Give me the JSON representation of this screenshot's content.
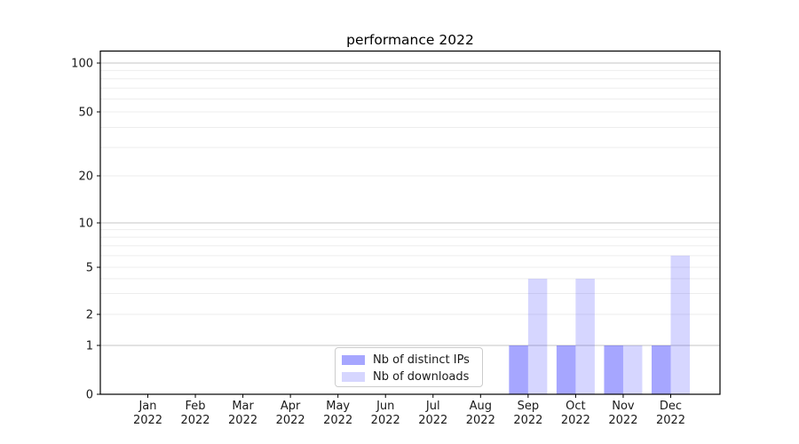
{
  "chart_data": {
    "type": "bar",
    "title": "performance 2022",
    "categories": [
      "Jan",
      "Feb",
      "Mar",
      "Apr",
      "May",
      "Jun",
      "Jul",
      "Aug",
      "Sep",
      "Oct",
      "Nov",
      "Dec"
    ],
    "category_year": "2022",
    "series": [
      {
        "name": "Nb of distinct IPs",
        "color": "rgba(0,0,255,0.35)",
        "values": [
          0,
          0,
          0,
          0,
          0,
          0,
          0,
          0,
          1,
          1,
          1,
          1
        ]
      },
      {
        "name": "Nb of downloads",
        "color": "rgba(0,0,255,0.16)",
        "values": [
          0,
          0,
          0,
          0,
          0,
          0,
          0,
          0,
          4,
          4,
          1,
          6
        ]
      }
    ],
    "yscale": "symlog",
    "yticks": [
      0,
      1,
      2,
      5,
      10,
      20,
      50,
      100
    ],
    "minor_yticks": [
      3,
      4,
      6,
      7,
      8,
      9,
      30,
      40,
      60,
      70,
      80,
      90
    ],
    "ylim": [
      0,
      115
    ],
    "xlabel": "",
    "ylabel": "",
    "grid": "horizontal, both major and minor",
    "legend_position": "inside bottom-center"
  }
}
